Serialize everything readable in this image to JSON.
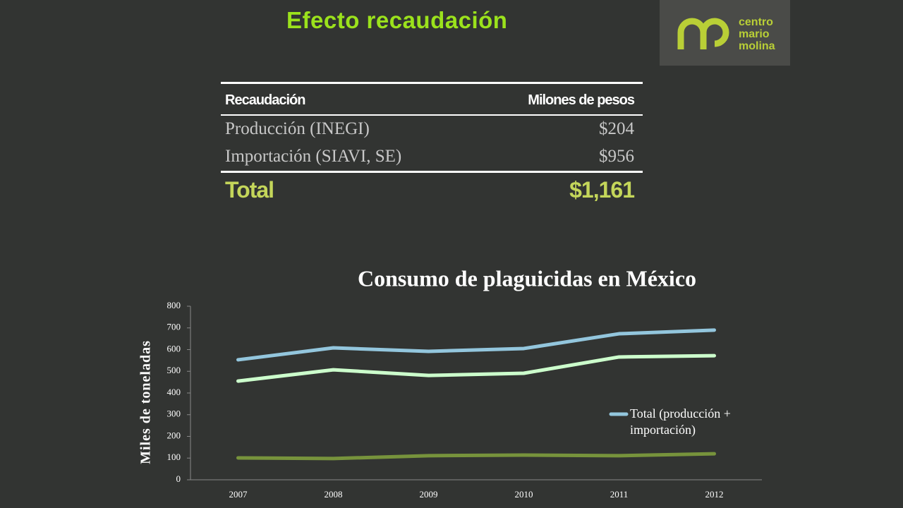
{
  "header": {
    "title": "Efecto recaudación",
    "logo": [
      "centro",
      "mario",
      "molina"
    ]
  },
  "table": {
    "columns": [
      "Recaudación",
      "Milones de pesos"
    ],
    "rows": [
      [
        "Producción (INEGI)",
        "$204"
      ],
      [
        "Importación (SIAVI, SE)",
        "$956"
      ]
    ],
    "total": [
      "Total",
      "$1,161"
    ]
  },
  "chart_data": {
    "type": "line",
    "title": "Consumo de plaguicidas en México",
    "y_label": "Miles de toneladas",
    "categories": [
      "2007",
      "2008",
      "2009",
      "2010",
      "2011",
      "2012"
    ],
    "series": [
      {
        "name": "Total (producción + importación)",
        "color": "#93c6dd",
        "values": [
          553,
          608,
          592,
          605,
          673,
          690
        ]
      },
      {
        "color": "#ccffcc",
        "values": [
          455,
          507,
          481,
          491,
          566,
          572
        ]
      },
      {
        "color": "#77933c",
        "values": [
          101,
          98,
          111,
          114,
          111,
          120
        ]
      }
    ],
    "ylim": [
      0,
      800
    ],
    "yticks": [
      0,
      100,
      200,
      300,
      400,
      500,
      600,
      700,
      800
    ],
    "legend": "right"
  }
}
